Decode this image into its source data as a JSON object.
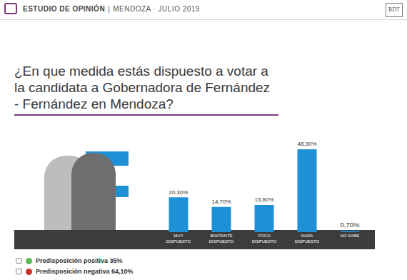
{
  "header": {
    "title": "ESTUDIO DE OPINIÓN",
    "separator": "|",
    "place_date": "MENDOZA · JULIO 2019"
  },
  "logo": "RDT",
  "chart_data": {
    "type": "bar",
    "title": "¿En que medida estás dispuesto a votar a la candidata a Gobernadora de Fernández - Fernández en Mendoza?",
    "categories": [
      "MUY DISPUESTO",
      "BASTANTE DISPUESTO",
      "POCO DISPUESTO",
      "NADA DISPUESTO",
      "NO SABE"
    ],
    "values": [
      20.3,
      14.7,
      15.8,
      48.3,
      0.7
    ],
    "value_labels": [
      "20,30%",
      "14,70%",
      "15,80%",
      "48,30%",
      "0,70%"
    ],
    "color": "#1e90d6",
    "ylim": [
      0,
      50
    ],
    "grid": false,
    "data_labels": true,
    "tick_labels": "x"
  },
  "footer": [
    {
      "text": "Predisposición positiva 35%",
      "color": "#5cb85c"
    },
    {
      "text": "Predisposición negativa 64,10%",
      "color": "#c9302c"
    }
  ]
}
